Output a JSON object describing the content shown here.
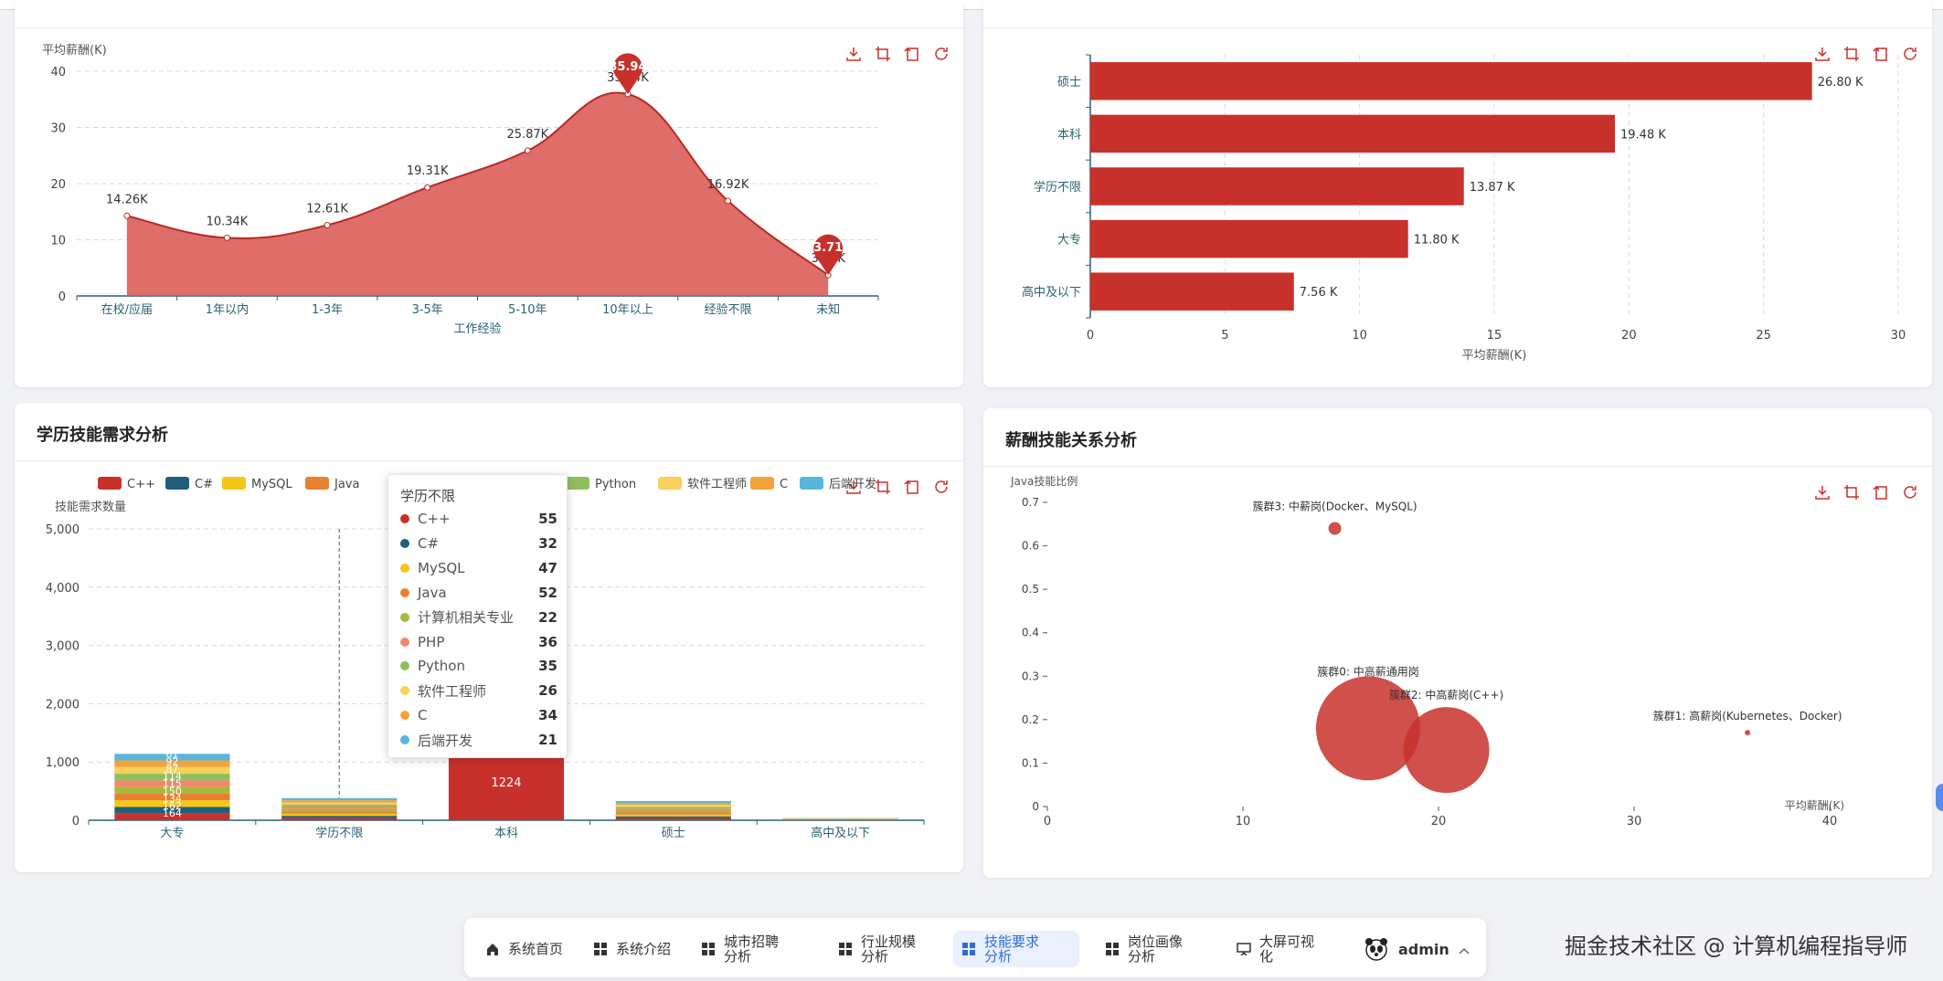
{
  "cards": {
    "exp": {
      "ylabel": "平均薪酬(K)",
      "xlabel": "工作经验",
      "yticks": [
        "0",
        "10",
        "20",
        "30",
        "40"
      ],
      "labels": [
        "14.26K",
        "10.34K",
        "12.61K",
        "19.31K",
        "25.87K",
        "35.94K",
        "16.92K",
        "3.71K"
      ],
      "marker_max": "35.94",
      "marker_min": "3.71"
    },
    "edu_salary": {
      "xlabel": "平均薪酬(K)",
      "xticks": [
        "0",
        "5",
        "10",
        "15",
        "20",
        "25",
        "30"
      ],
      "labels": [
        "26.80 K",
        "19.48 K",
        "13.87 K",
        "11.80 K",
        "7.56 K"
      ]
    },
    "edu_skill": {
      "title": "学历技能需求分析",
      "ylabel": "技能需求数量",
      "yticks": [
        "0",
        "1,000",
        "2,000",
        "3,000",
        "4,000",
        "5,000"
      ],
      "legend": [
        "C++",
        "C#",
        "MySQL",
        "Java",
        "Python",
        "软件工程师",
        "C",
        "后端开发"
      ],
      "bar_value_label": "1224",
      "dazhuan_labels": [
        "164",
        "162",
        "134",
        "150",
        "115",
        "114",
        "87",
        "92",
        "61"
      ]
    },
    "salary_skill": {
      "title": "薪酬技能关系分析",
      "ylabel": "Java技能比例",
      "xlabel": "平均薪酬(K)",
      "yticks": [
        "0",
        "0.1",
        "0.2",
        "0.3",
        "0.4",
        "0.5",
        "0.6",
        "0.7"
      ],
      "xticks": [
        "0",
        "10",
        "20",
        "30",
        "40"
      ],
      "cluster_labels": [
        "簇群3: 中薪岗(Docker、MySQL)",
        "簇群0: 中高薪通用岗",
        "簇群2: 中高薪岗(C++)",
        "簇群1: 高薪岗(Kubernetes、Docker)"
      ]
    }
  },
  "tooltip": {
    "title": "学历不限",
    "rows": [
      {
        "name": "C++",
        "value": "55",
        "color": "#c8312b"
      },
      {
        "name": "C#",
        "value": "32",
        "color": "#1f5f7a"
      },
      {
        "name": "MySQL",
        "value": "47",
        "color": "#f5c518"
      },
      {
        "name": "Java",
        "value": "52",
        "color": "#e8812f"
      },
      {
        "name": "计算机相关专业",
        "value": "22",
        "color": "#a6b93a"
      },
      {
        "name": "PHP",
        "value": "36",
        "color": "#f08a6c"
      },
      {
        "name": "Python",
        "value": "35",
        "color": "#8fbf5c"
      },
      {
        "name": "软件工程师",
        "value": "26",
        "color": "#f8d05a"
      },
      {
        "name": "C",
        "value": "34",
        "color": "#f2a33a"
      },
      {
        "name": "后端开发",
        "value": "21",
        "color": "#58b6dd"
      }
    ]
  },
  "nav": {
    "items": [
      {
        "label": "系统首页",
        "icon": "home-icon"
      },
      {
        "label": "系统介绍",
        "icon": "grid-icon"
      },
      {
        "label": "城市招聘分析",
        "icon": "grid-icon"
      },
      {
        "label": "行业规模分析",
        "icon": "grid-icon"
      },
      {
        "label": "技能要求分析",
        "icon": "grid-icon"
      },
      {
        "label": "岗位画像分析",
        "icon": "grid-icon"
      },
      {
        "label": "大屏可视化",
        "icon": "presentation-icon"
      }
    ],
    "user": "admin"
  },
  "watermark": "掘金技术社区 @ 计算机编程指导师",
  "chart_data": [
    {
      "type": "area",
      "categories": [
        "在校/应届",
        "1年以内",
        "1-3年",
        "3-5年",
        "5-10年",
        "10年以上",
        "经验不限",
        "未知"
      ],
      "values": [
        14.26,
        10.34,
        12.61,
        19.31,
        25.87,
        35.94,
        16.92,
        3.71
      ],
      "xlabel": "工作经验",
      "ylabel": "平均薪酬(K)",
      "ylim": [
        0,
        40
      ]
    },
    {
      "type": "bar",
      "orientation": "horizontal",
      "categories": [
        "硕士",
        "本科",
        "学历不限",
        "大专",
        "高中及以下"
      ],
      "values": [
        26.8,
        19.48,
        13.87,
        11.8,
        7.56
      ],
      "xlabel": "平均薪酬(K)",
      "xlim": [
        0,
        30
      ]
    },
    {
      "type": "bar",
      "stacked": true,
      "categories": [
        "大专",
        "学历不限",
        "本科",
        "硕士",
        "高中及以下"
      ],
      "totals": [
        1140,
        380,
        1224,
        330,
        40
      ],
      "tooltip_category": "学历不限",
      "ylabel": "技能需求数量",
      "ylim": [
        0,
        5000
      ]
    },
    {
      "type": "scatter",
      "xlabel": "平均薪酬(K)",
      "ylabel": "Java技能比例",
      "xlim": [
        0,
        40
      ],
      "ylim": [
        0,
        0.7
      ],
      "points": [
        {
          "name": "簇群3: 中薪岗(Docker、MySQL)",
          "x": 14.7,
          "y": 0.64,
          "size": "small"
        },
        {
          "name": "簇群0: 中高薪通用岗",
          "x": 16.4,
          "y": 0.18,
          "size": "large"
        },
        {
          "name": "簇群2: 中高薪岗(C++)",
          "x": 20.4,
          "y": 0.13,
          "size": "large"
        },
        {
          "name": "簇群1: 高薪岗(Kubernetes、Docker)",
          "x": 35.8,
          "y": 0.17,
          "size": "tiny"
        }
      ]
    }
  ]
}
